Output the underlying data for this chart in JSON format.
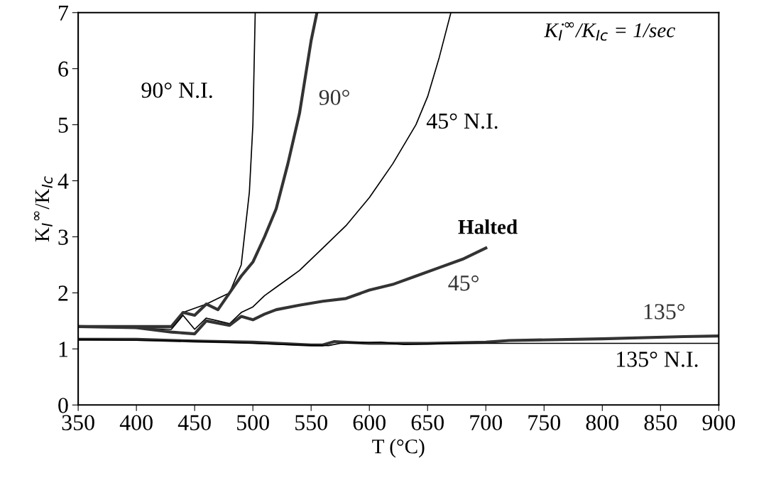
{
  "chart_data": {
    "type": "line",
    "xlabel": "T (°C)",
    "ylabel": "K$_{I}$$^{∞}$/K$_{Ic}$",
    "xlim": [
      350,
      900
    ],
    "ylim": [
      0,
      7
    ],
    "xticks": [
      350,
      400,
      450,
      500,
      550,
      600,
      650,
      700,
      750,
      800,
      850,
      900
    ],
    "yticks": [
      0,
      1,
      2,
      3,
      4,
      5,
      6,
      7
    ],
    "grid": false,
    "legend": false,
    "marker": "none",
    "line_style": "solid",
    "series": [
      {
        "name": "90° N.I.",
        "color": "#000000",
        "x": [
          350,
          430,
          440,
          460,
          470,
          480,
          490,
          497,
          500,
          502
        ],
        "values": [
          1.4,
          1.4,
          1.65,
          1.8,
          1.9,
          2.0,
          2.5,
          3.8,
          5.0,
          7.0
        ]
      },
      {
        "name": "90°",
        "color": "#333333",
        "x": [
          350,
          430,
          440,
          450,
          460,
          470,
          480,
          490,
          500,
          510,
          520,
          530,
          540,
          550,
          555
        ],
        "values": [
          1.4,
          1.4,
          1.65,
          1.6,
          1.8,
          1.7,
          2.0,
          2.3,
          2.55,
          3.0,
          3.5,
          4.3,
          5.2,
          6.5,
          7.0
        ]
      },
      {
        "name": "45° N.I.",
        "color": "#000000",
        "x": [
          350,
          430,
          440,
          450,
          460,
          470,
          480,
          490,
          500,
          510,
          520,
          530,
          540,
          550,
          560,
          580,
          600,
          620,
          640,
          650,
          660,
          670
        ],
        "values": [
          1.4,
          1.35,
          1.6,
          1.35,
          1.55,
          1.5,
          1.45,
          1.65,
          1.75,
          1.95,
          2.1,
          2.25,
          2.4,
          2.6,
          2.8,
          3.2,
          3.7,
          4.3,
          5.0,
          5.5,
          6.2,
          7.0
        ]
      },
      {
        "name": "45°",
        "color": "#333333",
        "x": [
          350,
          400,
          430,
          450,
          460,
          480,
          490,
          500,
          510,
          520,
          540,
          560,
          580,
          600,
          620,
          640,
          660,
          680,
          700
        ],
        "values": [
          1.4,
          1.38,
          1.3,
          1.27,
          1.5,
          1.42,
          1.58,
          1.52,
          1.62,
          1.7,
          1.78,
          1.85,
          1.9,
          2.05,
          2.15,
          2.3,
          2.45,
          2.6,
          2.8
        ]
      },
      {
        "name": "135°",
        "color": "#333333",
        "x": [
          350,
          400,
          450,
          500,
          550,
          560,
          570,
          600,
          650,
          700,
          720,
          800,
          870,
          900
        ],
        "values": [
          1.17,
          1.17,
          1.14,
          1.12,
          1.07,
          1.07,
          1.13,
          1.1,
          1.1,
          1.12,
          1.15,
          1.18,
          1.22,
          1.23
        ]
      },
      {
        "name": "135° N.I.",
        "color": "#000000",
        "x": [
          350,
          450,
          540,
          565,
          575,
          610,
          630,
          680,
          700,
          900
        ],
        "values": [
          1.17,
          1.14,
          1.07,
          1.06,
          1.1,
          1.12,
          1.08,
          1.1,
          1.1,
          1.1
        ]
      }
    ],
    "annotations": [
      {
        "text": "Halted",
        "x": 700,
        "y": 2.8
      },
      "K̇$_{I}$$^{∞}$/K$_{Ic}$ = 1/sec"
    ]
  }
}
